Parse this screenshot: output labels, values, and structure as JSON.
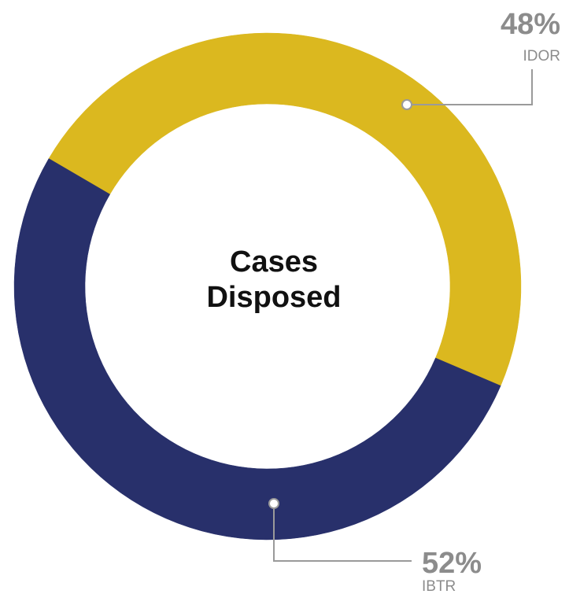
{
  "chart_data": {
    "type": "pie",
    "variant": "donut",
    "center_title": [
      "Cases",
      "Disposed"
    ],
    "slices": [
      {
        "label": "IDOR",
        "value_label": "48%",
        "value": 48,
        "color": "#dbb81f"
      },
      {
        "label": "IBTR",
        "value_label": "52%",
        "value": 52,
        "color": "#28306b"
      }
    ]
  }
}
